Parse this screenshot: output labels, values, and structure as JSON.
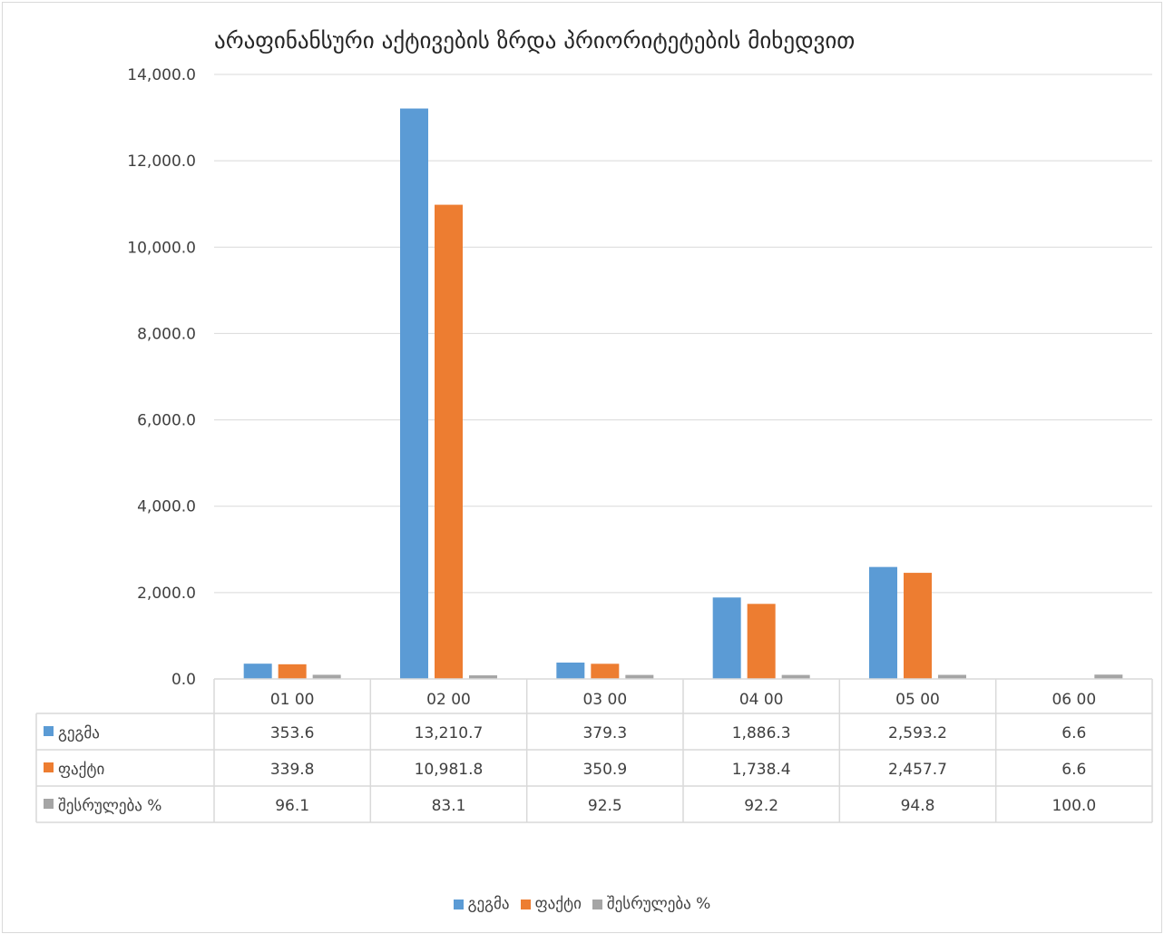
{
  "chart_data": {
    "type": "bar",
    "title": "არაფინანსური აქტივების ზრდა პრიორიტეტების მიხედვით",
    "categories": [
      "01 00",
      "02 00",
      "03 00",
      "04 00",
      "05 00",
      "06 00"
    ],
    "series": [
      {
        "name": "გეგმა",
        "color": "#5b9bd5",
        "values": [
          353.6,
          13210.7,
          379.3,
          1886.3,
          2593.2,
          6.6
        ]
      },
      {
        "name": "ფაქტი",
        "color": "#ed7d31",
        "values": [
          339.8,
          10981.8,
          350.9,
          1738.4,
          2457.7,
          6.6
        ]
      },
      {
        "name": "შესრულება %",
        "color": "#a5a5a5",
        "values": [
          96.1,
          83.1,
          92.5,
          92.2,
          94.8,
          100.0
        ]
      }
    ],
    "ylim": [
      0,
      14000
    ],
    "yticks": [
      0,
      2000,
      4000,
      6000,
      8000,
      10000,
      12000,
      14000
    ],
    "ytick_labels": [
      "0.0",
      "2,000.0",
      "4,000.0",
      "6,000.0",
      "8,000.0",
      "10,000.0",
      "12,000.0",
      "14,000.0"
    ],
    "data_table": {
      "rows": [
        [
          "353.6",
          "13,210.7",
          "379.3",
          "1,886.3",
          "2,593.2",
          "6.6"
        ],
        [
          "339.8",
          "10,981.8",
          "350.9",
          "1,738.4",
          "2,457.7",
          "6.6"
        ],
        [
          "96.1",
          "83.1",
          "92.5",
          "92.2",
          "94.8",
          "100.0"
        ]
      ]
    },
    "grid": true,
    "legend_position": "bottom"
  }
}
